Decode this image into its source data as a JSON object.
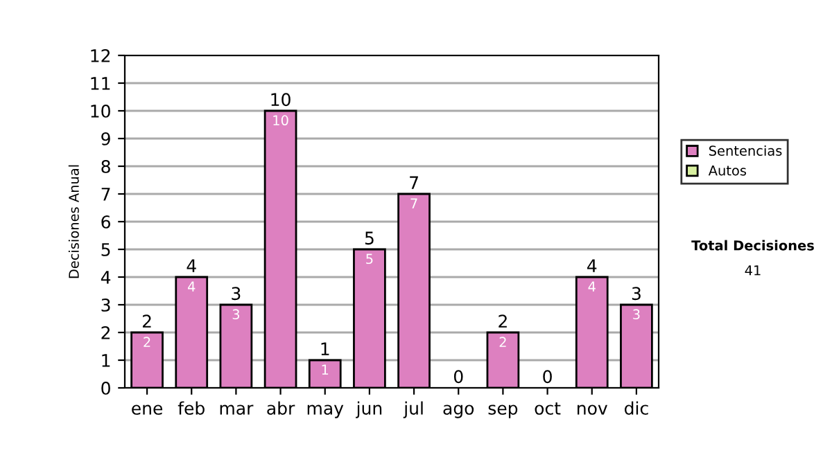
{
  "chart_data": {
    "type": "bar",
    "ylabel": "Decisiones Anual",
    "categories": [
      "ene",
      "feb",
      "mar",
      "abr",
      "may",
      "jun",
      "jul",
      "ago",
      "sep",
      "oct",
      "nov",
      "dic"
    ],
    "stacked": true,
    "series": [
      {
        "name": "Sentencias",
        "color": "#dd80c0",
        "values": [
          2,
          4,
          3,
          10,
          1,
          5,
          7,
          0,
          2,
          0,
          4,
          3
        ],
        "value_labels": [
          "2",
          "4",
          "3",
          "10",
          "1",
          "5",
          "7",
          null,
          "2",
          null,
          "4",
          "3"
        ]
      },
      {
        "name": "Autos",
        "color": "#d8f0a0",
        "values": [
          0,
          0,
          0,
          0,
          0,
          0,
          0,
          0,
          0,
          0,
          0,
          0
        ]
      }
    ],
    "totals": [
      "2",
      "4",
      "3",
      "10",
      "1",
      "5",
      "7",
      "0",
      "2",
      "0",
      "4",
      "3"
    ],
    "ylim": [
      0,
      12
    ],
    "yticks": [
      0,
      1,
      2,
      3,
      4,
      5,
      6,
      7,
      8,
      9,
      10,
      11,
      12
    ],
    "grid": "y",
    "legend": "right",
    "annotations": [
      "Total Decisiones",
      "41"
    ]
  }
}
